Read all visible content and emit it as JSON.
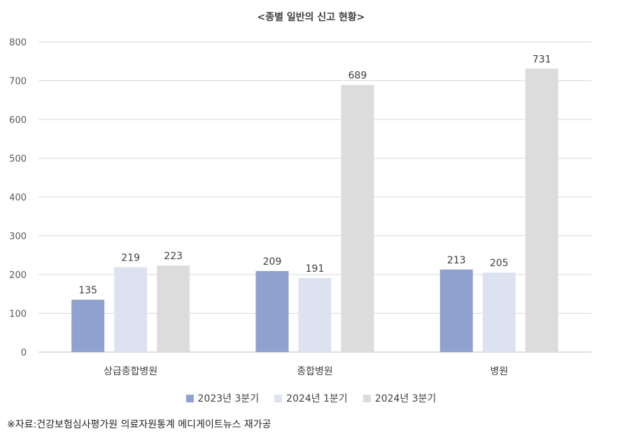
{
  "chart_data": {
    "type": "bar",
    "title": "<종별 일반의 신고 현황>",
    "categories": [
      "상급종합병원",
      "종합병원",
      "병원"
    ],
    "series": [
      {
        "name": "2023년 3분기",
        "values": [
          135,
          209,
          213
        ],
        "color": "#8fa2cf"
      },
      {
        "name": "2024년 1분기",
        "values": [
          219,
          191,
          205
        ],
        "color": "#dde2f1"
      },
      {
        "name": "2024년 3분기",
        "values": [
          223,
          689,
          731
        ],
        "color": "#dcdcdc"
      }
    ],
    "ylim": [
      0,
      800
    ],
    "yticks": [
      0,
      100,
      200,
      300,
      400,
      500,
      600,
      700,
      800
    ],
    "grid": true,
    "legend_position": "bottom"
  },
  "source_note": "※자료:건강보험심사평가원 의료자원통계 메디게이트뉴스 재가공"
}
